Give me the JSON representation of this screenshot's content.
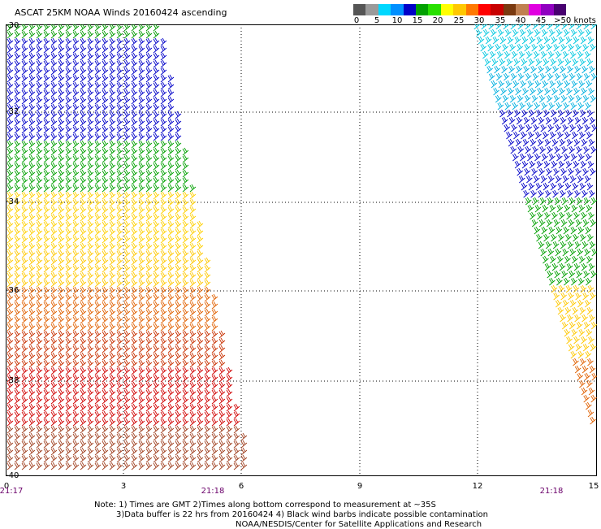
{
  "title": "ASCAT 25KM NOAA Winds 20160424 ascending",
  "colorbar": {
    "colors": [
      "#555555",
      "#9a9a9a",
      "#00d8ff",
      "#0090ff",
      "#0000c8",
      "#00a000",
      "#28e000",
      "#ffff00",
      "#ffc800",
      "#ff7800",
      "#ff0000",
      "#c80000",
      "#7a3a10",
      "#c08050",
      "#e000e0",
      "#9000c0",
      "#480070"
    ],
    "labels": [
      "0",
      "5",
      "10",
      "15",
      "20",
      "25",
      "30",
      "35",
      "40",
      "45",
      ">50 knots"
    ]
  },
  "map": {
    "lat_labels": [
      "-30",
      "-32",
      "-34",
      "-36",
      "-38",
      "-40"
    ],
    "lon_labels": [
      "0",
      "3",
      "6",
      "9",
      "12",
      "15"
    ],
    "time_labels": [
      "21:17",
      "21:18",
      "21:18"
    ],
    "grid": true
  },
  "notes": {
    "line1": "Note: 1) Times are GMT 2)Times along bottom correspond to measurement at ~35S",
    "line2": "3)Data buffer is 22 hrs from 20160424 4) Black wind barbs indicate possible contamination",
    "line3": "NOAA/NESDIS/Center for Satellite Applications and Research"
  }
}
